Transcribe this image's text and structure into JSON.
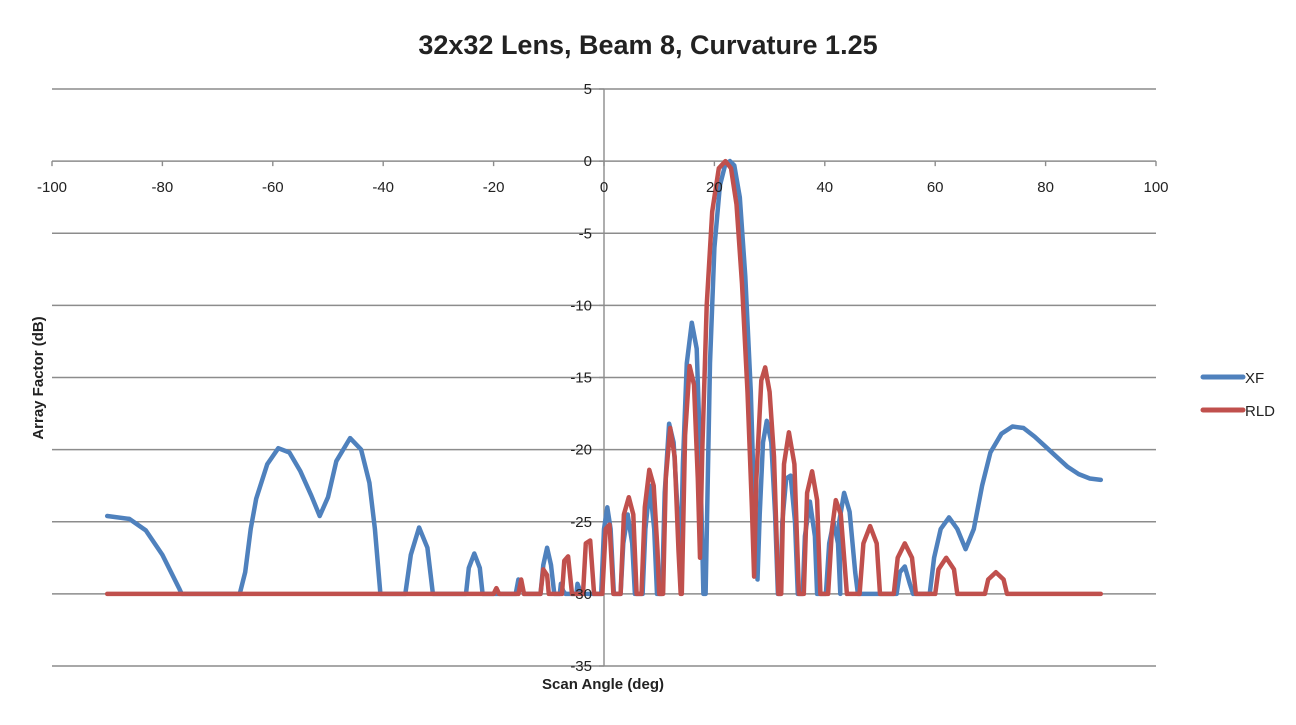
{
  "chart_data": {
    "type": "line",
    "title": "32x32 Lens, Beam 8, Curvature 1.25",
    "xlabel": "Scan Angle (deg)",
    "ylabel": "Array Factor (dB)",
    "xlim": [
      -100,
      100
    ],
    "ylim": [
      -35,
      5
    ],
    "x_ticks": [
      -100,
      -80,
      -60,
      -40,
      -20,
      0,
      20,
      40,
      60,
      80,
      100
    ],
    "y_ticks": [
      5,
      0,
      -5,
      -10,
      -15,
      -20,
      -25,
      -30,
      -35
    ],
    "grid": "horizontal",
    "legend_position": "right",
    "series": [
      {
        "name": "XF",
        "color": "#4F81BD",
        "points": [
          [
            -90,
            -24.6
          ],
          [
            -86,
            -24.8
          ],
          [
            -83,
            -25.6
          ],
          [
            -80,
            -27.3
          ],
          [
            -77,
            -29.6
          ],
          [
            -76.5,
            -30
          ],
          [
            -66,
            -30
          ],
          [
            -65,
            -28.5
          ],
          [
            -64,
            -25.5
          ],
          [
            -63,
            -23.4
          ],
          [
            -61,
            -21
          ],
          [
            -59,
            -19.9
          ],
          [
            -57,
            -20.2
          ],
          [
            -55,
            -21.5
          ],
          [
            -53,
            -23.2
          ],
          [
            -51.5,
            -24.6
          ],
          [
            -50,
            -23.3
          ],
          [
            -48.5,
            -20.8
          ],
          [
            -46,
            -19.2
          ],
          [
            -44,
            -20
          ],
          [
            -42.5,
            -22.3
          ],
          [
            -41.5,
            -25.5
          ],
          [
            -40.5,
            -30
          ],
          [
            -36,
            -30
          ],
          [
            -35,
            -27.3
          ],
          [
            -33.5,
            -25.4
          ],
          [
            -32,
            -26.8
          ],
          [
            -31,
            -30
          ],
          [
            -25,
            -30
          ],
          [
            -24.5,
            -28.2
          ],
          [
            -23.5,
            -27.2
          ],
          [
            -22.5,
            -28.2
          ],
          [
            -22,
            -30
          ],
          [
            -16,
            -30
          ],
          [
            -15.5,
            -29
          ],
          [
            -15,
            -29.3
          ],
          [
            -14.5,
            -30
          ],
          [
            -11.5,
            -30
          ],
          [
            -11,
            -28
          ],
          [
            -10.3,
            -26.8
          ],
          [
            -9.6,
            -28
          ],
          [
            -9,
            -30
          ],
          [
            -8,
            -30
          ],
          [
            -7.8,
            -29.3
          ],
          [
            -7.4,
            -29.8
          ],
          [
            -7,
            -30
          ],
          [
            -5,
            -30
          ],
          [
            -4.8,
            -29.3
          ],
          [
            -4.4,
            -29.7
          ],
          [
            -4,
            -30
          ],
          [
            -0.5,
            -30
          ],
          [
            0,
            -25.5
          ],
          [
            0.6,
            -24
          ],
          [
            1.2,
            -25.5
          ],
          [
            1.8,
            -30
          ],
          [
            3,
            -30
          ],
          [
            3.5,
            -26.5
          ],
          [
            4.3,
            -24.5
          ],
          [
            5.1,
            -26.5
          ],
          [
            5.6,
            -30
          ],
          [
            7,
            -30
          ],
          [
            7.5,
            -25.5
          ],
          [
            8.3,
            -22.5
          ],
          [
            9.1,
            -25.5
          ],
          [
            9.6,
            -30
          ],
          [
            10.5,
            -30
          ],
          [
            11,
            -23
          ],
          [
            11.8,
            -18.2
          ],
          [
            12.6,
            -19.5
          ],
          [
            13.3,
            -24
          ],
          [
            13.9,
            -27.6
          ],
          [
            14.3,
            -21
          ],
          [
            15,
            -14
          ],
          [
            15.9,
            -11.2
          ],
          [
            16.8,
            -13
          ],
          [
            17.4,
            -20
          ],
          [
            18,
            -30
          ],
          [
            18.4,
            -30
          ],
          [
            19.2,
            -14
          ],
          [
            20,
            -6
          ],
          [
            21,
            -1.7
          ],
          [
            22,
            -0.2
          ],
          [
            22.8,
            0
          ],
          [
            23.6,
            -0.3
          ],
          [
            24.6,
            -2.5
          ],
          [
            25.6,
            -8
          ],
          [
            26.6,
            -16
          ],
          [
            27.4,
            -26
          ],
          [
            27.8,
            -29
          ],
          [
            28.2,
            -24.5
          ],
          [
            28.8,
            -19.5
          ],
          [
            29.5,
            -18
          ],
          [
            30.3,
            -19.5
          ],
          [
            31,
            -24.5
          ],
          [
            31.5,
            -30
          ],
          [
            32,
            -30
          ],
          [
            32.3,
            -25
          ],
          [
            33,
            -22
          ],
          [
            33.8,
            -21.8
          ],
          [
            34.6,
            -25
          ],
          [
            35.1,
            -30
          ],
          [
            36,
            -30
          ],
          [
            36.4,
            -26
          ],
          [
            37.3,
            -23.6
          ],
          [
            38.2,
            -26
          ],
          [
            38.6,
            -30
          ],
          [
            40.2,
            -30
          ],
          [
            40.8,
            -26.5
          ],
          [
            41.6,
            -25
          ],
          [
            42.4,
            -26.5
          ],
          [
            42.8,
            -30
          ],
          [
            42.6,
            -25
          ],
          [
            43.5,
            -23
          ],
          [
            44.5,
            -24.3
          ],
          [
            45.5,
            -28.5
          ],
          [
            46,
            -30
          ],
          [
            53,
            -30
          ],
          [
            53.6,
            -28.5
          ],
          [
            54.5,
            -28.1
          ],
          [
            55.4,
            -29.3
          ],
          [
            56,
            -30
          ],
          [
            59,
            -30
          ],
          [
            59.8,
            -27.5
          ],
          [
            61,
            -25.5
          ],
          [
            62.5,
            -24.7
          ],
          [
            64,
            -25.5
          ],
          [
            65.5,
            -26.9
          ],
          [
            67,
            -25.5
          ],
          [
            68.5,
            -22.5
          ],
          [
            70,
            -20.2
          ],
          [
            72,
            -18.9
          ],
          [
            74,
            -18.4
          ],
          [
            76,
            -18.5
          ],
          [
            78,
            -19.1
          ],
          [
            80,
            -19.8
          ],
          [
            82,
            -20.5
          ],
          [
            84,
            -21.2
          ],
          [
            86,
            -21.7
          ],
          [
            88,
            -22
          ],
          [
            90,
            -22.1
          ]
        ]
      },
      {
        "name": "RLD",
        "color": "#C0504D",
        "points": [
          [
            -90,
            -30
          ],
          [
            -20,
            -30
          ],
          [
            -19.5,
            -29.6
          ],
          [
            -19,
            -30
          ],
          [
            -15.5,
            -30
          ],
          [
            -15,
            -29
          ],
          [
            -14.5,
            -30
          ],
          [
            -11.5,
            -30
          ],
          [
            -11,
            -28.3
          ],
          [
            -10.3,
            -28.7
          ],
          [
            -10,
            -30
          ],
          [
            -7.6,
            -30
          ],
          [
            -7.2,
            -27.7
          ],
          [
            -6.5,
            -27.4
          ],
          [
            -5.8,
            -30
          ],
          [
            -3.8,
            -30
          ],
          [
            -3.3,
            -26.5
          ],
          [
            -2.5,
            -26.3
          ],
          [
            -1.8,
            -30
          ],
          [
            -0.3,
            -30
          ],
          [
            0.3,
            -25.5
          ],
          [
            1,
            -25.2
          ],
          [
            1.7,
            -30
          ],
          [
            3,
            -30
          ],
          [
            3.6,
            -24.5
          ],
          [
            4.5,
            -23.3
          ],
          [
            5.3,
            -24.5
          ],
          [
            5.9,
            -30
          ],
          [
            6.8,
            -30
          ],
          [
            7.4,
            -24
          ],
          [
            8.2,
            -21.4
          ],
          [
            9,
            -22.5
          ],
          [
            9.7,
            -27
          ],
          [
            10,
            -30
          ],
          [
            10.7,
            -30
          ],
          [
            11.2,
            -22
          ],
          [
            12,
            -18.5
          ],
          [
            12.8,
            -20.5
          ],
          [
            13.5,
            -27
          ],
          [
            13.9,
            -30
          ],
          [
            14.1,
            -30
          ],
          [
            14.7,
            -19
          ],
          [
            15.5,
            -14.2
          ],
          [
            16.3,
            -15.5
          ],
          [
            17,
            -22
          ],
          [
            17.4,
            -27.5
          ],
          [
            17.8,
            -20
          ],
          [
            18.6,
            -10
          ],
          [
            19.6,
            -3.5
          ],
          [
            20.8,
            -0.5
          ],
          [
            22,
            0
          ],
          [
            23,
            -0.5
          ],
          [
            24,
            -3
          ],
          [
            25,
            -8.5
          ],
          [
            26,
            -16
          ],
          [
            26.8,
            -24
          ],
          [
            27.2,
            -28.8
          ],
          [
            27.6,
            -22
          ],
          [
            28.5,
            -15.2
          ],
          [
            29.2,
            -14.3
          ],
          [
            30,
            -16
          ],
          [
            30.8,
            -20.5
          ],
          [
            31.6,
            -30
          ],
          [
            32.1,
            -30
          ],
          [
            32.6,
            -21
          ],
          [
            33.5,
            -18.8
          ],
          [
            34.5,
            -21
          ],
          [
            35.3,
            -30
          ],
          [
            36.2,
            -30
          ],
          [
            36.8,
            -23
          ],
          [
            37.7,
            -21.5
          ],
          [
            38.6,
            -23.5
          ],
          [
            39.2,
            -30
          ],
          [
            40.6,
            -30
          ],
          [
            41.3,
            -25.5
          ],
          [
            42,
            -23.5
          ],
          [
            42.9,
            -24.5
          ],
          [
            43.6,
            -28
          ],
          [
            44,
            -30
          ],
          [
            46.3,
            -30
          ],
          [
            47,
            -26.5
          ],
          [
            48.2,
            -25.3
          ],
          [
            49.4,
            -26.5
          ],
          [
            50,
            -30
          ],
          [
            52.5,
            -30
          ],
          [
            53.2,
            -27.5
          ],
          [
            54.5,
            -26.5
          ],
          [
            55.8,
            -27.5
          ],
          [
            56.5,
            -30
          ],
          [
            60,
            -30
          ],
          [
            60.6,
            -28.3
          ],
          [
            62,
            -27.5
          ],
          [
            63.4,
            -28.3
          ],
          [
            64,
            -30
          ],
          [
            69,
            -30
          ],
          [
            69.6,
            -29
          ],
          [
            71,
            -28.5
          ],
          [
            72.4,
            -29
          ],
          [
            73,
            -30
          ],
          [
            90,
            -30
          ]
        ]
      }
    ]
  }
}
